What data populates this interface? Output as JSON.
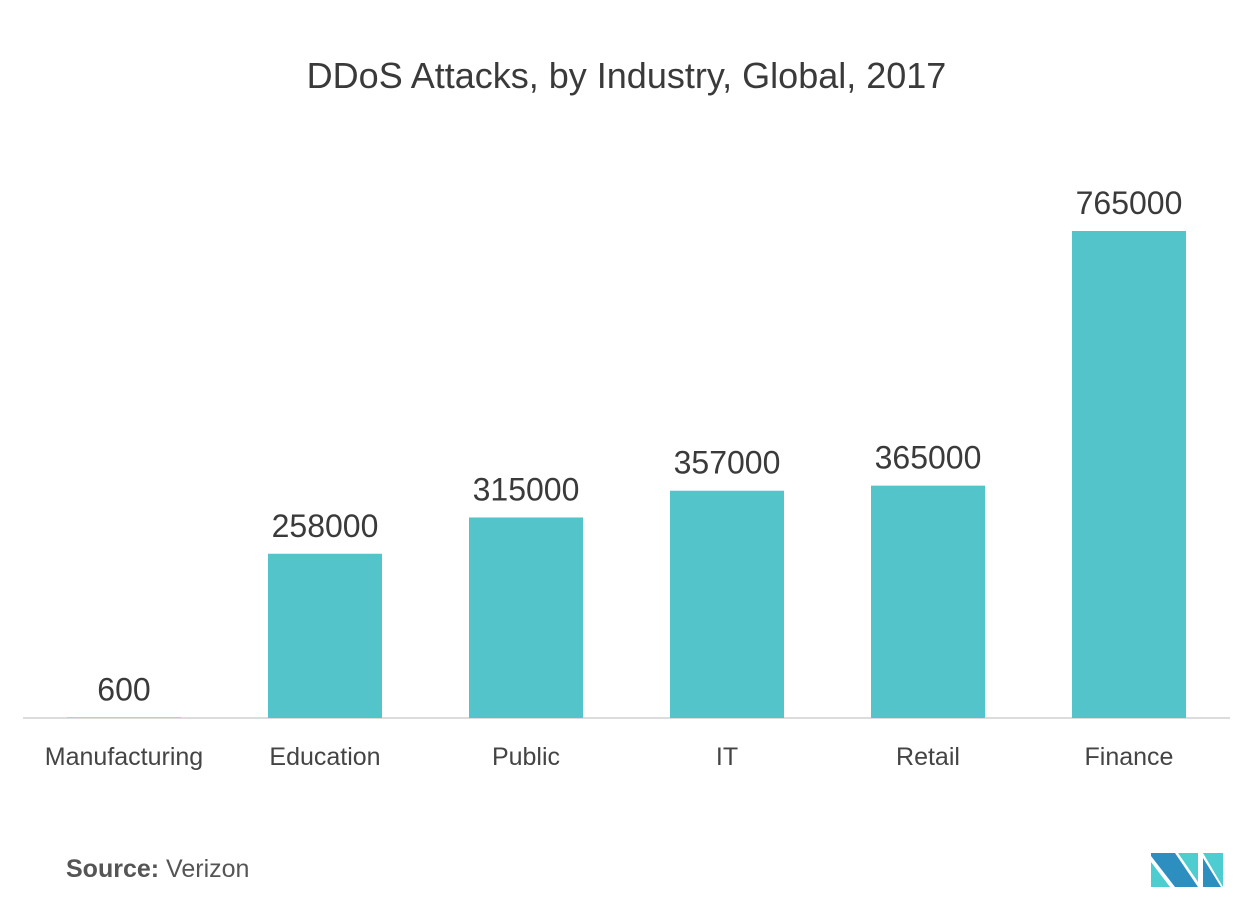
{
  "chart_data": {
    "type": "bar",
    "title": "DDoS Attacks, by Industry, Global, 2017",
    "categories": [
      "Manufacturing",
      "Education",
      "Public",
      "IT",
      "Retail",
      "Finance"
    ],
    "values": [
      600,
      258000,
      315000,
      357000,
      365000,
      765000
    ],
    "value_labels": [
      "600",
      "258000",
      "315000",
      "357000",
      "365000",
      "765000"
    ],
    "xlabel": "",
    "ylabel": "",
    "ylim": [
      0,
      765000
    ],
    "grid": false,
    "bar_color": "#52c4ca"
  },
  "source": {
    "label": "Source:",
    "value": "Verizon"
  },
  "colors": {
    "logo_dark": "#2d8fc0",
    "logo_light": "#4ecdd0"
  }
}
